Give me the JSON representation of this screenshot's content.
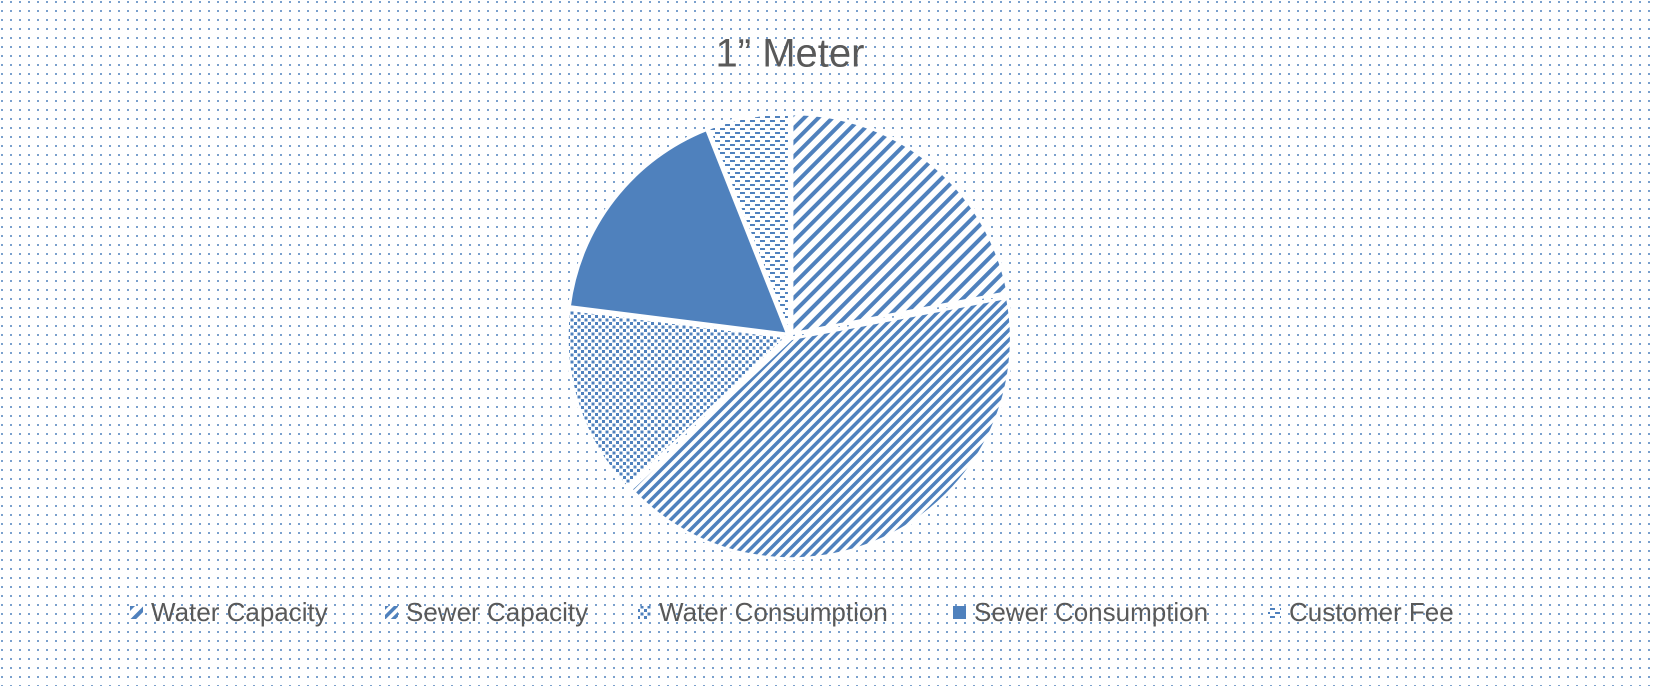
{
  "chart_data": {
    "type": "pie",
    "title": "1” Meter",
    "categories": [
      "Water Capacity",
      "Sewer Capacity",
      "Water Consumption",
      "Sewer Consumption",
      "Customer Fee"
    ],
    "values": [
      22,
      41,
      14,
      17,
      6
    ],
    "color": "#4f81bd",
    "patterns": [
      "wide-diagonal",
      "narrow-diagonal",
      "dots",
      "solid",
      "dashes"
    ],
    "legend": "bottom"
  }
}
